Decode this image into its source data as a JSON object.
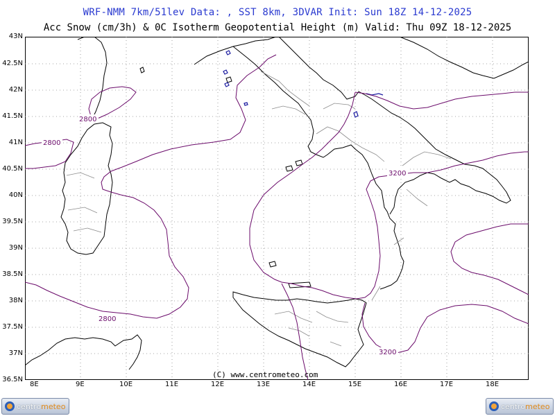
{
  "header": {
    "line1": "WRF-NMM 7km/51lev  Data: , SST 8km, 3DVAR  Init: Sun 18Z 14-12-2025",
    "line2": "Acc Snow (cm/3h) & 0C Isotherm Geopotential Height (m)  Valid: Thu 09Z 18-12-2025"
  },
  "map": {
    "lat_labels": [
      "43N",
      "42.5N",
      "42N",
      "41.5N",
      "41N",
      "40.5N",
      "40N",
      "39.5N",
      "39N",
      "38.5N",
      "38N",
      "37.5N",
      "37N",
      "36.5N"
    ],
    "lon_labels": [
      "8E",
      "9E",
      "10E",
      "11E",
      "12E",
      "13E",
      "14E",
      "15E",
      "16E",
      "17E",
      "18E"
    ],
    "contour_labels": [
      "2800",
      "2800",
      "2800",
      "3200",
      "3200"
    ],
    "copyright": "(C) www.centrometeo.com",
    "colors": {
      "isotherm": "#6a0a6a",
      "coast": "#000000",
      "borders": "#8c8c8c",
      "snow": "#1a1aa0",
      "title": "#2a3ad0"
    }
  },
  "footer": {
    "logo_left": {
      "part1": "centro",
      "part2": "meteo"
    },
    "logo_right": {
      "part1": "centro",
      "part2": "meteo"
    }
  }
}
